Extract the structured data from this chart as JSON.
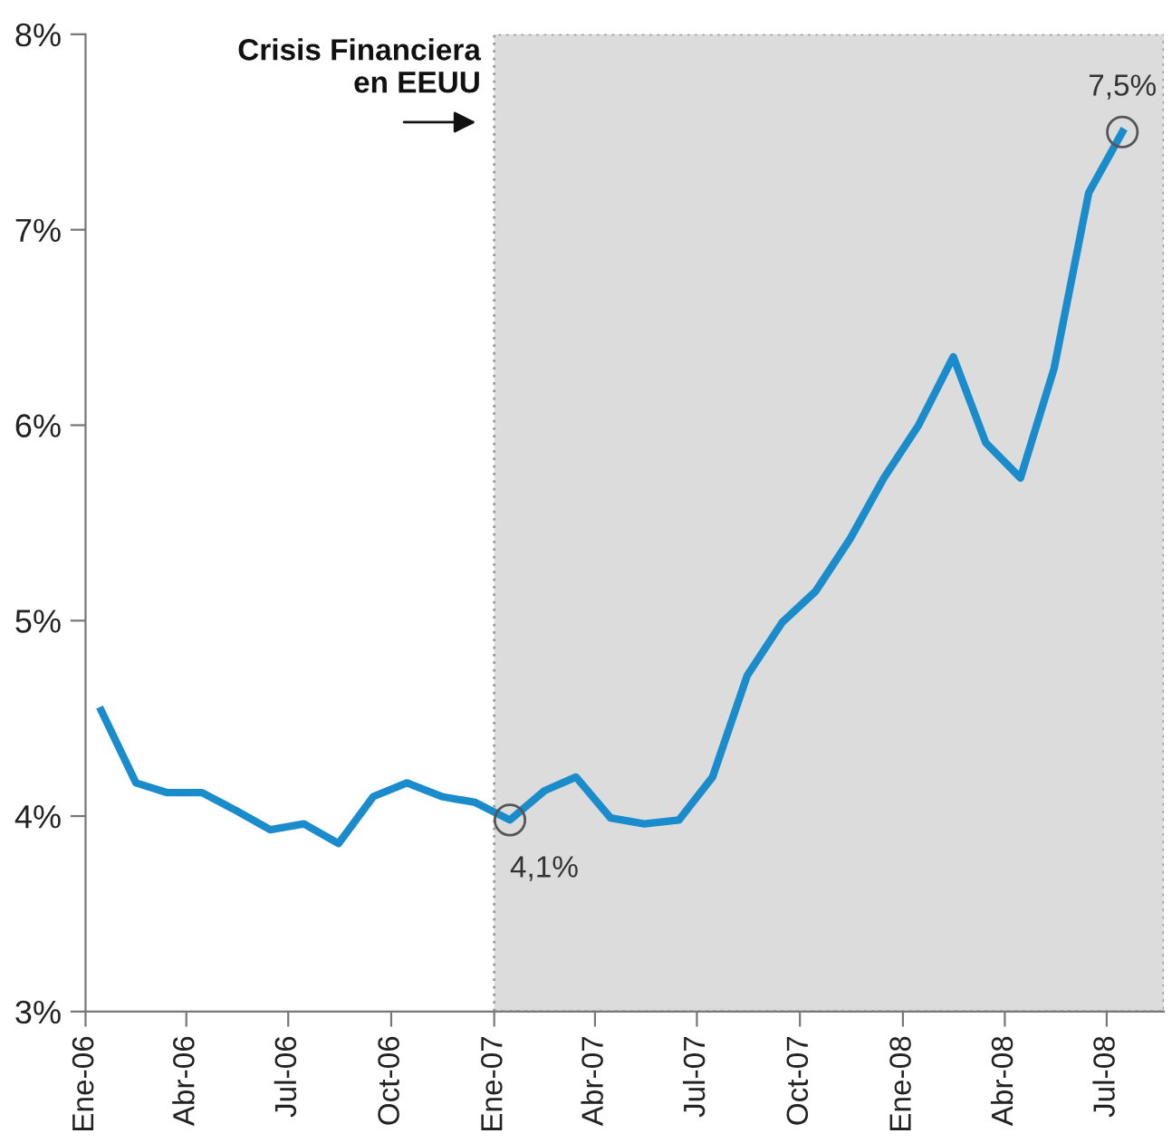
{
  "chart_data": {
    "type": "line",
    "x": [
      "2006-01-15",
      "2006-02-15",
      "2006-03-15",
      "2006-04-15",
      "2006-05-15",
      "2006-06-15",
      "2006-07-15",
      "2006-08-15",
      "2006-09-15",
      "2006-10-15",
      "2006-11-15",
      "2006-12-15",
      "2007-01-15",
      "2007-02-15",
      "2007-03-15",
      "2007-04-15",
      "2007-05-15",
      "2007-06-15",
      "2007-07-15",
      "2007-08-15",
      "2007-09-15",
      "2007-10-15",
      "2007-11-15",
      "2007-12-15",
      "2008-01-15",
      "2008-02-15",
      "2008-03-15",
      "2008-04-15",
      "2008-05-15",
      "2008-06-15",
      "2008-07-15"
    ],
    "series": [
      {
        "color": "#1a8ccc",
        "values": [
          4.54,
          4.17,
          4.12,
          4.12,
          4.03,
          3.93,
          3.96,
          3.86,
          4.1,
          4.17,
          4.1,
          4.07,
          3.98,
          4.13,
          4.2,
          3.99,
          3.96,
          3.98,
          4.2,
          4.72,
          4.99,
          5.15,
          5.42,
          5.73,
          6.0,
          6.35,
          5.91,
          5.73,
          6.29,
          7.19,
          7.5
        ]
      }
    ],
    "xlim": [
      "2006-01-01",
      "2008-08-21"
    ],
    "xticks": [
      {
        "value": "2006-01-01",
        "label": "Ene-06"
      },
      {
        "value": "2006-04-01",
        "label": "Abr-06"
      },
      {
        "value": "2006-07-01",
        "label": "Jul-06"
      },
      {
        "value": "2006-10-01",
        "label": "Oct-06"
      },
      {
        "value": "2007-01-01",
        "label": "Ene-07"
      },
      {
        "value": "2007-04-01",
        "label": "Abr-07"
      },
      {
        "value": "2007-07-01",
        "label": "Jul-07"
      },
      {
        "value": "2007-10-01",
        "label": "Oct-07"
      },
      {
        "value": "2008-01-01",
        "label": "Ene-08"
      },
      {
        "value": "2008-04-01",
        "label": "Abr-08"
      },
      {
        "value": "2008-07-01",
        "label": "Jul-08"
      }
    ],
    "ylim": [
      3,
      8
    ],
    "yticks": [
      {
        "value": 3,
        "label": "3%"
      },
      {
        "value": 4,
        "label": "4%"
      },
      {
        "value": 5,
        "label": "5%"
      },
      {
        "value": 6,
        "label": "6%"
      },
      {
        "value": 7,
        "label": "7%"
      },
      {
        "value": 8,
        "label": "8%"
      }
    ],
    "bands": [
      {
        "axis": "x",
        "from": "2007-01-01",
        "to": "2008-08-21",
        "label": "Crisis Financiera\nen EEUU",
        "color": "#dcdcdc"
      }
    ],
    "annotations": [
      {
        "text": "4,1%",
        "x": "2007-01-15",
        "y": 3.98
      },
      {
        "text": "7,5%",
        "x": "2008-07-15",
        "y": 7.5
      }
    ],
    "grid": false,
    "legend": false,
    "marker": "none",
    "line_style": "solid"
  }
}
